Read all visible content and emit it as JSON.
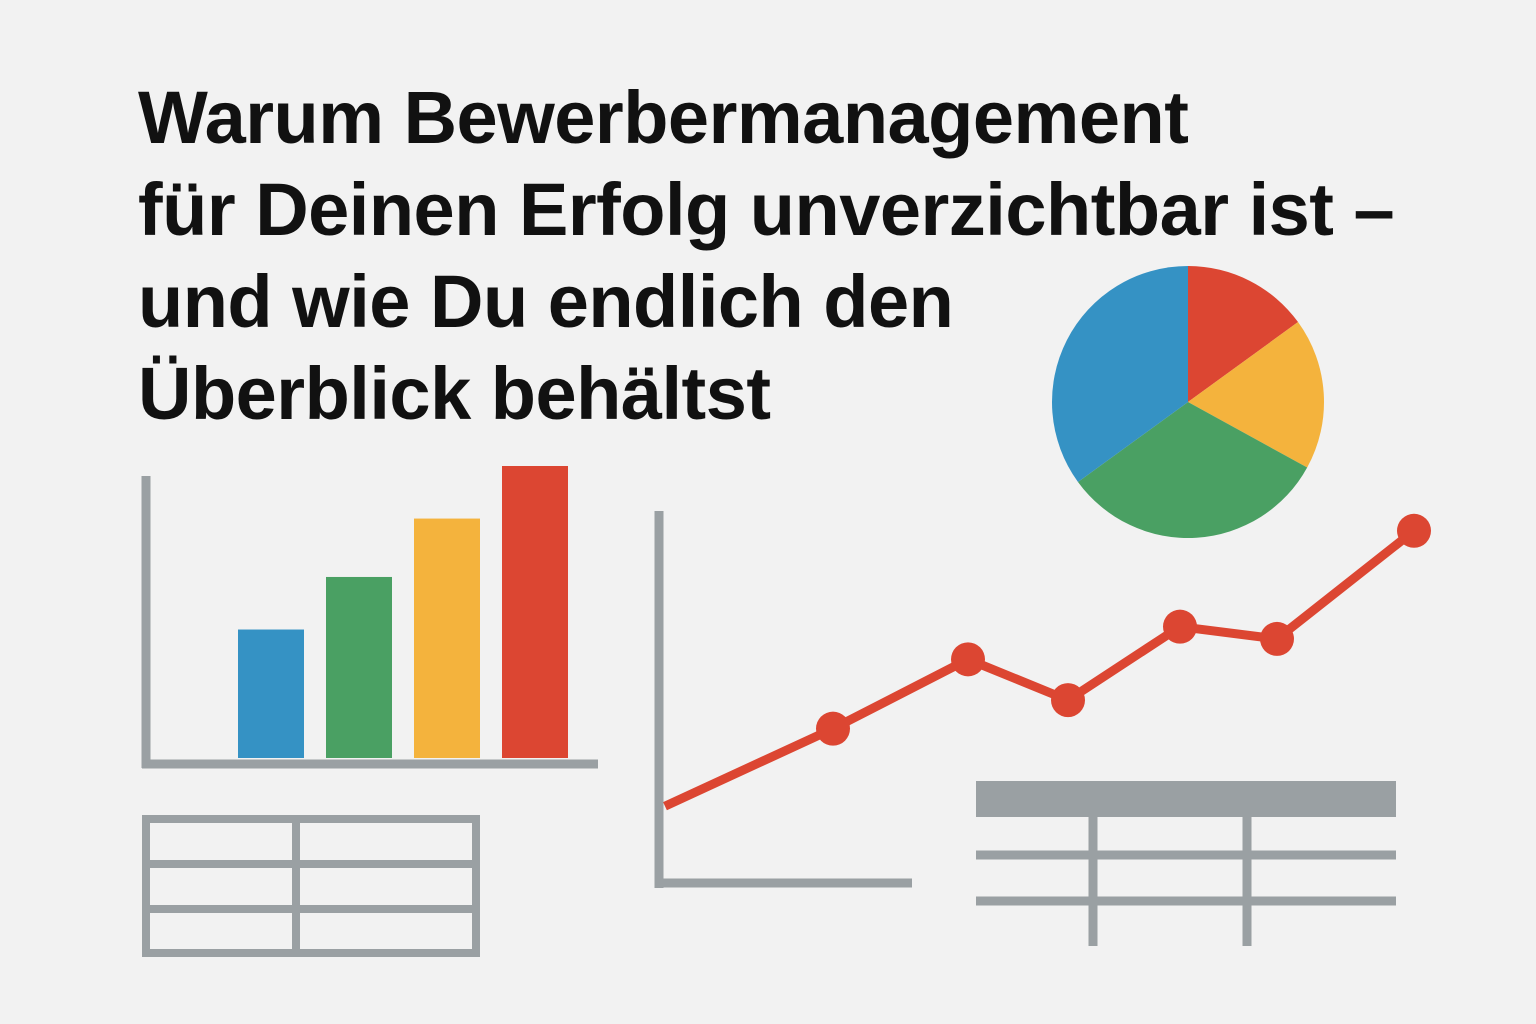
{
  "title_lines": [
    "Warum Bewerbermanagement",
    "für Deinen Erfolg unverzichtbar ist –",
    "und wie Du endlich den",
    "Überblick behältst"
  ],
  "colors": {
    "background": "#f2f2f2",
    "text": "#111111",
    "axis": "#9aa0a3",
    "blue": "#3592c4",
    "green": "#4aa063",
    "yellow": "#f4b33d",
    "red": "#dc4632"
  },
  "chart_data": [
    {
      "type": "bar",
      "categories": [
        "",
        "",
        "",
        ""
      ],
      "values": [
        44,
        62,
        82,
        100
      ],
      "colors": [
        "#3592c4",
        "#4aa063",
        "#f4b33d",
        "#dc4632"
      ],
      "ylim": [
        0,
        100
      ],
      "grid": false
    },
    {
      "type": "line",
      "x": [
        1,
        2,
        3,
        4,
        5,
        6,
        7
      ],
      "values": [
        20,
        58,
        92,
        72,
        108,
        102,
        155
      ],
      "marker": "circle",
      "color": "#dc4632",
      "ylim": [
        0,
        165
      ],
      "grid": false
    },
    {
      "type": "pie",
      "slices": [
        {
          "value": 15,
          "color": "#dc4632"
        },
        {
          "value": 18,
          "color": "#f4b33d"
        },
        {
          "value": 32,
          "color": "#4aa063"
        },
        {
          "value": 35,
          "color": "#3592c4"
        }
      ]
    },
    {
      "type": "table",
      "rows": 3,
      "columns": 2,
      "style": "grid"
    },
    {
      "type": "table",
      "rows": 3,
      "columns": 3,
      "style": "header-bar"
    }
  ]
}
